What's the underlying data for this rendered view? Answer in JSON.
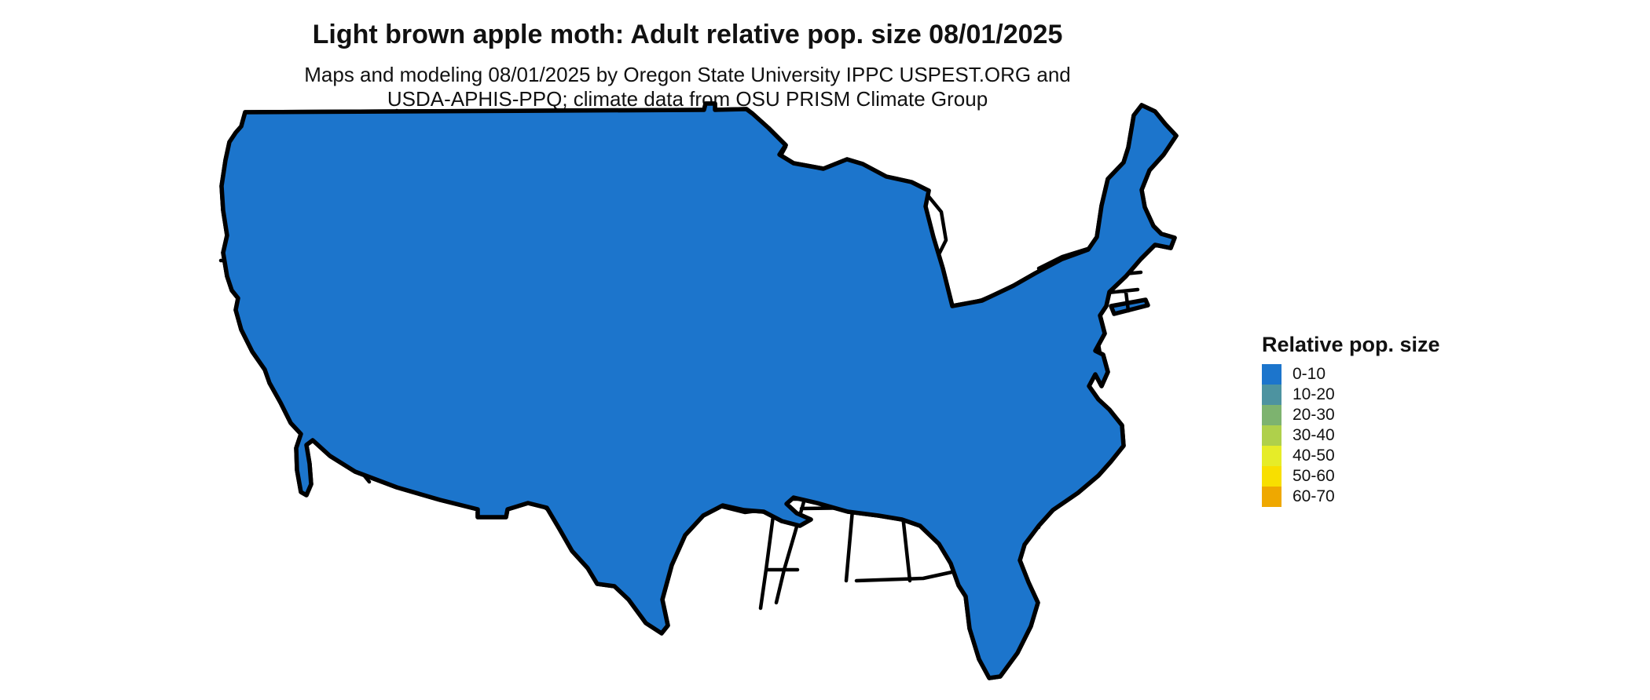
{
  "title": "Light brown apple moth: Adult relative pop. size 08/01/2025",
  "subtitle_line1": "Maps and modeling 08/01/2025 by Oregon State University IPPC USPEST.ORG and",
  "subtitle_line2": "USDA-APHIS-PPQ; climate data from OSU PRISM Climate Group",
  "legend": {
    "title": "Relative pop. size",
    "items": [
      {
        "label": "0-10",
        "color": "#1C75CC"
      },
      {
        "label": "10-20",
        "color": "#4D93A0"
      },
      {
        "label": "20-30",
        "color": "#7DB36F"
      },
      {
        "label": "30-40",
        "color": "#AFD04B"
      },
      {
        "label": "40-50",
        "color": "#E6EC28"
      },
      {
        "label": "50-60",
        "color": "#F8DF00"
      },
      {
        "label": "60-70",
        "color": "#EFA800"
      }
    ]
  },
  "map": {
    "region": "Contiguous United States with state boundaries",
    "land_color": "#1C75CC",
    "water_color": "#FFFFFF",
    "border_color": "#000000"
  }
}
